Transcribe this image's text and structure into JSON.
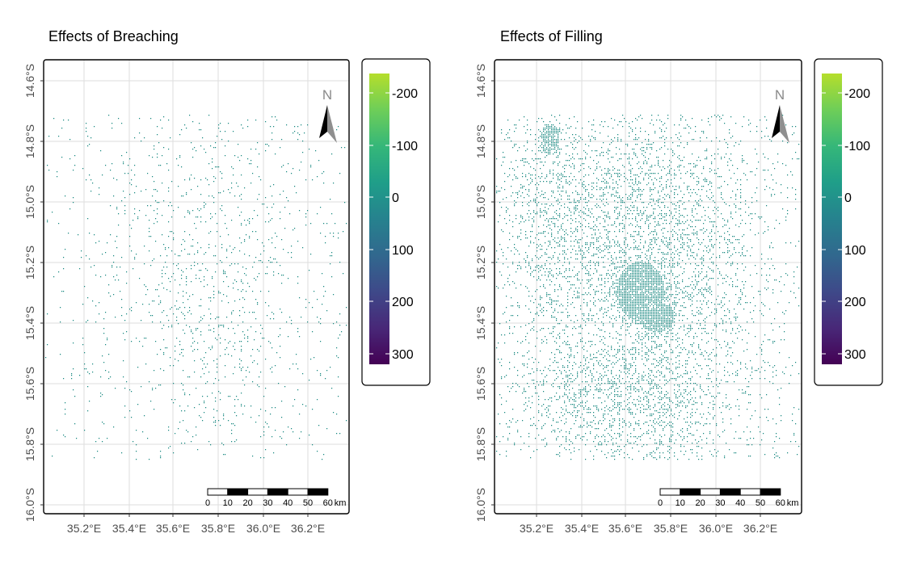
{
  "panels": [
    {
      "title": "Effects of Breaching",
      "x_ticks": [
        "35.2°E",
        "35.4°E",
        "35.6°E",
        "35.8°E",
        "36.0°E",
        "36.2°E"
      ],
      "y_ticks": [
        "14.6°S",
        "14.8°S",
        "15.0°S",
        "15.2°S",
        "15.4°S",
        "15.6°S",
        "15.8°S",
        "16.0°S"
      ],
      "north_label": "N",
      "scalebar": {
        "ticks": [
          "0",
          "10",
          "20",
          "30",
          "40",
          "50",
          "60"
        ],
        "unit": "km"
      },
      "legend": {
        "ticks": [
          "-200",
          "-100",
          "0",
          "100",
          "200",
          "300"
        ]
      }
    },
    {
      "title": "Effects of Filling",
      "x_ticks": [
        "35.2°E",
        "35.4°E",
        "35.6°E",
        "35.8°E",
        "36.0°E",
        "36.2°E"
      ],
      "y_ticks": [
        "14.6°S",
        "14.8°S",
        "15.0°S",
        "15.2°S",
        "15.4°S",
        "15.6°S",
        "15.8°S",
        "16.0°S"
      ],
      "north_label": "N",
      "scalebar": {
        "ticks": [
          "0",
          "10",
          "20",
          "30",
          "40",
          "50",
          "60"
        ],
        "unit": "km"
      },
      "legend": {
        "ticks": [
          "-200",
          "-100",
          "0",
          "100",
          "200",
          "300"
        ]
      }
    }
  ],
  "colors": {
    "pixel": "#12867e",
    "legend_gradient": [
      "#b5de2b",
      "#6ece58",
      "#35b779",
      "#1f9e89",
      "#26828e",
      "#31688e",
      "#3e4989",
      "#482878",
      "#440154"
    ],
    "grid": "#dedede",
    "frame": "#000000"
  }
}
